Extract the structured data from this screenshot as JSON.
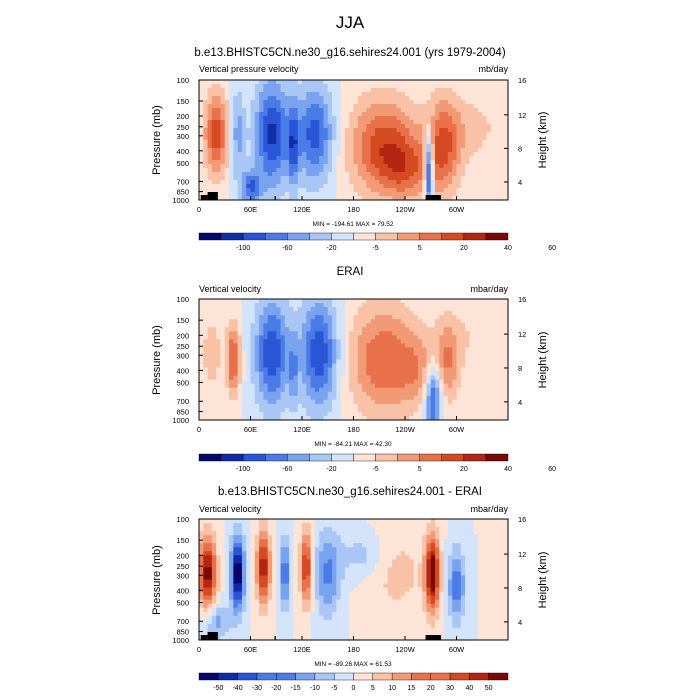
{
  "figure_title": "JJA",
  "chart_data": [
    {
      "type": "heatmap",
      "title": "b.e13.BHISTC5CN.ne30_g16.sehires24.001 (yrs 1979-2004)",
      "left_label": "Vertical pressure velocity",
      "units": "mb/day",
      "ylabel": "Pressure (mb)",
      "y2label": "Height (km)",
      "xticks": [
        "0",
        "60E",
        "120E",
        "180",
        "120W",
        "60W"
      ],
      "yticks": [
        "100",
        "150",
        "200",
        "250",
        "300",
        "400",
        "500",
        "700",
        "850",
        "1000"
      ],
      "y2ticks": [
        "16",
        "12",
        "8",
        "4"
      ],
      "minmax": "MIN = -194.61  MAX = 79.52",
      "colorbar_labels": [
        "-100",
        "-60",
        "-20",
        "-5",
        "5",
        "20",
        "40",
        "60"
      ],
      "field_range": [
        -194.61,
        79.52
      ],
      "ylim": [
        1000,
        100
      ],
      "xlim": [
        0,
        360
      ]
    },
    {
      "type": "heatmap",
      "title": "ERAI",
      "left_label": "Vertical velocity",
      "units": "mbar/day",
      "ylabel": "Pressure (mb)",
      "y2label": "Height (km)",
      "xticks": [
        "0",
        "60E",
        "120E",
        "180",
        "120W",
        "60W"
      ],
      "yticks": [
        "100",
        "150",
        "200",
        "250",
        "300",
        "400",
        "500",
        "700",
        "850",
        "1000"
      ],
      "y2ticks": [
        "16",
        "12",
        "8",
        "4"
      ],
      "minmax": "MIN = -84.21  MAX = 42.30",
      "colorbar_labels": [
        "-100",
        "-60",
        "-20",
        "-5",
        "5",
        "20",
        "40",
        "60"
      ],
      "field_range": [
        -84.21,
        42.3
      ],
      "ylim": [
        1000,
        100
      ],
      "xlim": [
        0,
        360
      ]
    },
    {
      "type": "heatmap",
      "title": "b.e13.BHISTC5CN.ne30_g16.sehires24.001 - ERAI",
      "left_label": "Vertical velocity",
      "units": "mbar/day",
      "ylabel": "Pressure (mb)",
      "y2label": "Height (km)",
      "xticks": [
        "0",
        "60E",
        "120E",
        "180",
        "120W",
        "60W"
      ],
      "yticks": [
        "100",
        "150",
        "200",
        "250",
        "300",
        "400",
        "500",
        "700",
        "850",
        "1000"
      ],
      "y2ticks": [
        "16",
        "12",
        "8",
        "4"
      ],
      "minmax": "MIN = -89.26  MAX = 61.53",
      "colorbar_labels": [
        "-50",
        "-40",
        "-30",
        "-20",
        "-15",
        "-10",
        "-5",
        "0",
        "5",
        "10",
        "15",
        "20",
        "30",
        "40",
        "50"
      ],
      "field_range": [
        -89.26,
        61.53
      ],
      "ylim": [
        1000,
        100
      ],
      "xlim": [
        0,
        360
      ]
    }
  ],
  "colors": {
    "palette": [
      "#08086b",
      "#0f2da6",
      "#2a55d6",
      "#4a7be6",
      "#79a3ef",
      "#a9c6f5",
      "#d3e3fa",
      "#fde4d6",
      "#f9c1a6",
      "#f29a76",
      "#e8704a",
      "#d64a22",
      "#b52612",
      "#7a0a06"
    ],
    "frame": "#000000",
    "terrain": "#000000"
  }
}
